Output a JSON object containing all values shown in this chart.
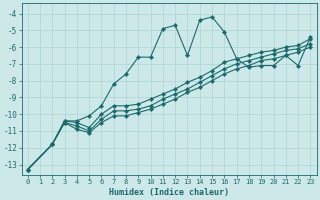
{
  "xlabel": "Humidex (Indice chaleur)",
  "ylabel": "",
  "bg_color": "#cce8e8",
  "line_color": "#1a6b6b",
  "grid_color": "#aad4d4",
  "xlim": [
    -0.5,
    23.5
  ],
  "ylim": [
    -13.6,
    -3.4
  ],
  "xticks": [
    0,
    1,
    2,
    3,
    4,
    5,
    6,
    7,
    8,
    9,
    10,
    11,
    12,
    13,
    14,
    15,
    16,
    17,
    18,
    19,
    20,
    21,
    22,
    23
  ],
  "yticks": [
    -13,
    -12,
    -11,
    -10,
    -9,
    -8,
    -7,
    -6,
    -5,
    -4
  ],
  "line1_x": [
    0,
    2,
    3,
    4,
    5,
    6,
    7,
    8,
    9,
    10,
    11,
    12,
    13,
    14,
    15,
    16,
    17,
    18,
    19,
    20,
    21,
    22,
    23
  ],
  "line1_y": [
    -13.3,
    -11.8,
    -10.4,
    -10.4,
    -10.1,
    -9.5,
    -8.2,
    -7.6,
    -6.6,
    -6.6,
    -4.9,
    -4.7,
    -6.5,
    -4.4,
    -4.2,
    -5.1,
    -6.7,
    -7.2,
    -7.1,
    -7.1,
    -6.5,
    -7.1,
    -5.4
  ],
  "line2_x": [
    0,
    2,
    3,
    4,
    5,
    6,
    7,
    8,
    9,
    10,
    11,
    12,
    13,
    14,
    15,
    16,
    17,
    18,
    19,
    20,
    21,
    22,
    23
  ],
  "line2_y": [
    -13.3,
    -11.8,
    -10.4,
    -10.5,
    -10.8,
    -10.0,
    -9.5,
    -9.5,
    -9.4,
    -9.1,
    -8.8,
    -8.5,
    -8.1,
    -7.8,
    -7.4,
    -6.9,
    -6.7,
    -6.5,
    -6.3,
    -6.2,
    -6.0,
    -5.9,
    -5.5
  ],
  "line3_x": [
    0,
    2,
    3,
    4,
    5,
    6,
    7,
    8,
    9,
    10,
    11,
    12,
    13,
    14,
    15,
    16,
    17,
    18,
    19,
    20,
    21,
    22,
    23
  ],
  "line3_y": [
    -13.3,
    -11.8,
    -10.5,
    -10.7,
    -11.0,
    -10.3,
    -9.8,
    -9.8,
    -9.7,
    -9.5,
    -9.1,
    -8.8,
    -8.5,
    -8.1,
    -7.7,
    -7.3,
    -7.0,
    -6.8,
    -6.6,
    -6.4,
    -6.2,
    -6.1,
    -5.8
  ],
  "line4_x": [
    0,
    2,
    3,
    4,
    5,
    6,
    7,
    8,
    9,
    10,
    11,
    12,
    13,
    14,
    15,
    16,
    17,
    18,
    19,
    20,
    21,
    22,
    23
  ],
  "line4_y": [
    -13.3,
    -11.8,
    -10.5,
    -10.9,
    -11.1,
    -10.5,
    -10.1,
    -10.1,
    -9.9,
    -9.7,
    -9.4,
    -9.1,
    -8.7,
    -8.4,
    -8.0,
    -7.6,
    -7.3,
    -7.1,
    -6.8,
    -6.7,
    -6.5,
    -6.3,
    -6.0
  ]
}
